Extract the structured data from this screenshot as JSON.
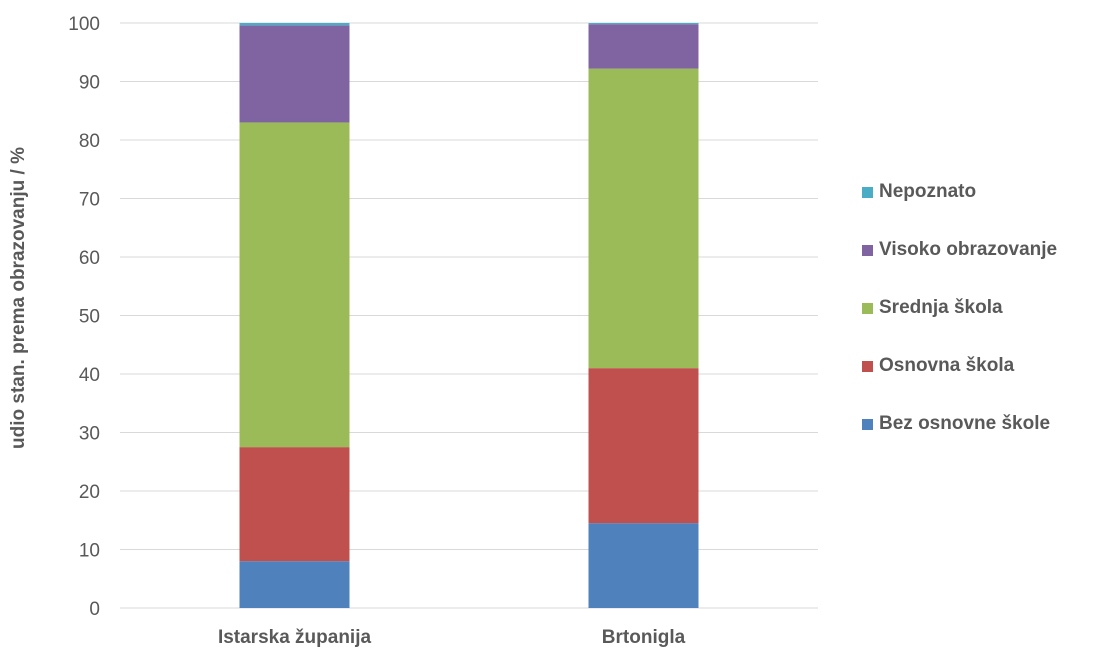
{
  "chart_data": {
    "type": "bar",
    "stacked": true,
    "categories": [
      "Istarska županija",
      "Brtonigla"
    ],
    "ylabel": "udio stan. prema obrazovanju / %",
    "xlabel": "",
    "ylim": [
      0,
      100
    ],
    "yticks": [
      0,
      10,
      20,
      30,
      40,
      50,
      60,
      70,
      80,
      90,
      100
    ],
    "grid": true,
    "legend_position": "right",
    "series": [
      {
        "name": "Bez osnovne škole",
        "color": "#4F81BD",
        "values": [
          8.0,
          14.5
        ]
      },
      {
        "name": "Osnovna škola",
        "color": "#C0504D",
        "values": [
          19.5,
          26.5
        ]
      },
      {
        "name": "Srednja škola",
        "color": "#9BBB59",
        "values": [
          55.5,
          51.2
        ]
      },
      {
        "name": "Visoko obrazovanje",
        "color": "#8064A2",
        "values": [
          16.6,
          7.6
        ]
      },
      {
        "name": "Nepoznato",
        "color": "#4BACC6",
        "values": [
          0.4,
          0.2
        ]
      }
    ]
  }
}
